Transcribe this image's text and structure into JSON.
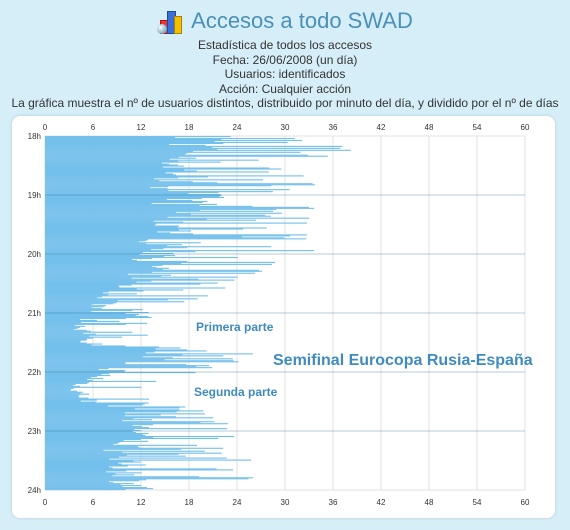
{
  "page": {
    "title": "Accesos a todo SWAD",
    "logo_icon": "statistics-chart-icon",
    "subtitle_lines": [
      "Estadística de todos los accesos",
      "Fecha: 26/06/2008 (un día)",
      "Usuarios: identificados",
      "Acción: Cualquier acción",
      "La gráfica muestra el nº de usuarios distintos, distribuido por minuto del día, y dividido por el nº de días"
    ]
  },
  "colors": {
    "bar": "#74c0ec",
    "title": "#4a90b8",
    "annotation": "#3f8bbf",
    "background": "#d6eef8"
  },
  "chart_data": {
    "type": "bar",
    "orientation": "horizontal",
    "x_ticks": [
      "0",
      "6",
      "12",
      "18",
      "24",
      "30",
      "36",
      "42",
      "48",
      "54",
      "60"
    ],
    "xlim": [
      0,
      60
    ],
    "y_ticks": [
      "18h",
      "19h",
      "20h",
      "21h",
      "22h",
      "23h",
      "24h"
    ],
    "ylim_hours": [
      18,
      24
    ],
    "grid": true,
    "legend": "none",
    "annotations": [
      "Primera parte",
      "Semifinal Eurocopa Rusia-España",
      "Segunda parte"
    ],
    "keypoints": [
      {
        "minute": 0,
        "base": 20,
        "spike": 34
      },
      {
        "minute": 12,
        "base": 22,
        "spike": 40
      },
      {
        "minute": 30,
        "base": 18,
        "spike": 32
      },
      {
        "minute": 60,
        "base": 19,
        "spike": 36
      },
      {
        "minute": 80,
        "base": 18,
        "spike": 33
      },
      {
        "minute": 120,
        "base": 16,
        "spike": 34
      },
      {
        "minute": 140,
        "base": 14,
        "spike": 26
      },
      {
        "minute": 165,
        "base": 9,
        "spike": 22
      },
      {
        "minute": 180,
        "base": 6,
        "spike": 14
      },
      {
        "minute": 195,
        "base": 5,
        "spike": 13
      },
      {
        "minute": 210,
        "base": 6,
        "spike": 13
      },
      {
        "minute": 220,
        "base": 16,
        "spike": 28
      },
      {
        "minute": 235,
        "base": 10,
        "spike": 22
      },
      {
        "minute": 255,
        "base": 4,
        "spike": 14
      },
      {
        "minute": 270,
        "base": 6,
        "spike": 14
      },
      {
        "minute": 280,
        "base": 14,
        "spike": 22
      },
      {
        "minute": 300,
        "base": 13,
        "spike": 24
      },
      {
        "minute": 320,
        "base": 10,
        "spike": 24
      },
      {
        "minute": 345,
        "base": 11,
        "spike": 29
      },
      {
        "minute": 359,
        "base": 12,
        "spike": 27
      }
    ]
  }
}
